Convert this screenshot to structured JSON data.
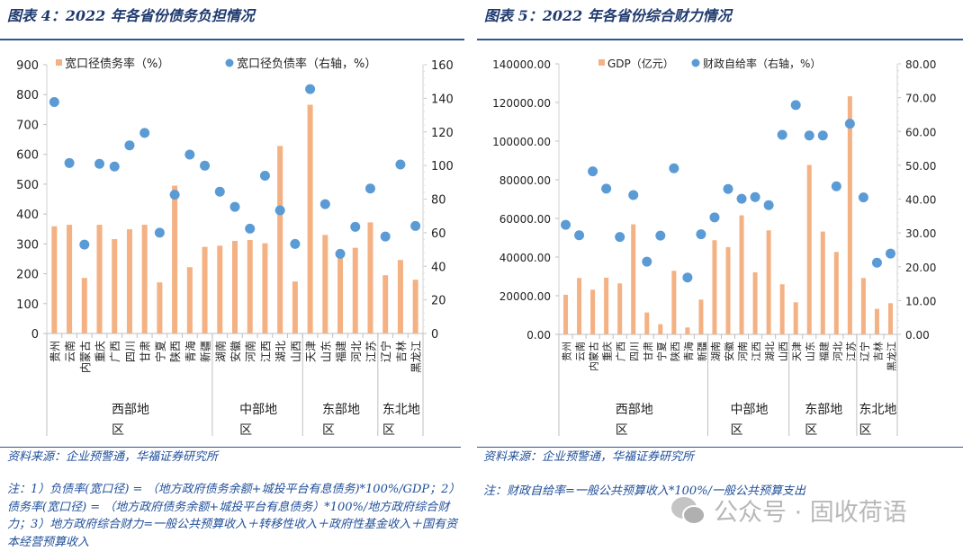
{
  "left": {
    "title": "图表 4：2022 年各省份债务负担情况",
    "source": "资料来源：企业预警通，华福证券研究所",
    "note": "注：1）负债率(宽口径) = （地方政府债务余额+城投平台有息债务)*100%/GDP；2）债务率(宽口径) = （地方政府债务余额+城投平台有息债务）*100%/地方政府综合财力；3）地方政府综合财力=一般公共预算收入＋转移性收入＋政府性基金收入＋国有资本经营预算收入"
  },
  "right": {
    "title": "图表 5：2022 年各省份综合财力情况",
    "source": "资料来源：企业预警通，华福证券研究所",
    "note": "注：财政自给率=一般公共预算收入*100%/一般公共预算支出"
  },
  "watermark": "公众号 · 固收荷语",
  "chart_data": [
    {
      "type": "bar+scatter",
      "categories": [
        "贵州",
        "云南",
        "内蒙古",
        "重庆",
        "广西",
        "四川",
        "甘肃",
        "宁夏",
        "陕西",
        "青海",
        "新疆",
        "湖南",
        "安徽",
        "河南",
        "江西",
        "湖北",
        "山西",
        "天津",
        "山东",
        "福建",
        "河北",
        "江苏",
        "辽宁",
        "吉林",
        "黑龙江"
      ],
      "regions": [
        {
          "name": "西部地区",
          "from": 0,
          "to": 10
        },
        {
          "name": "中部地区",
          "from": 11,
          "to": 16
        },
        {
          "name": "东部地区",
          "from": 17,
          "to": 21
        },
        {
          "name": "东北地区",
          "from": 22,
          "to": 24
        }
      ],
      "series": [
        {
          "name": "宽口径债务率（%）",
          "type": "bar",
          "axis": "left",
          "color": "#f4b183",
          "values": [
            359,
            364,
            186,
            364,
            316,
            349,
            364,
            171,
            495,
            222,
            290,
            294,
            310,
            313,
            302,
            628,
            174,
            766,
            330,
            260,
            287,
            372,
            195,
            246,
            180
          ]
        },
        {
          "name": "宽口径负债率（右轴，%）",
          "type": "scatter",
          "axis": "right",
          "color": "#5b9bd5",
          "values": [
            137.8,
            101.5,
            52.9,
            101,
            99.4,
            112,
            119.4,
            60,
            82.6,
            106.5,
            99.9,
            84.4,
            75.4,
            62.4,
            93.9,
            73.3,
            53.3,
            145.5,
            77,
            47.4,
            63.5,
            86.3,
            57.7,
            100.6,
            64
          ]
        }
      ],
      "yleft": {
        "min": 0,
        "max": 900,
        "step": 100,
        "ticks": [
          "0",
          "100",
          "200",
          "300",
          "400",
          "500",
          "600",
          "700",
          "800",
          "900"
        ]
      },
      "yright": {
        "min": 0,
        "max": 160,
        "step": 20,
        "ticks": [
          "0",
          "20",
          "40",
          "60",
          "80",
          "100",
          "120",
          "140",
          "160"
        ]
      },
      "legend": "top",
      "grid": false
    },
    {
      "type": "bar+scatter",
      "categories": [
        "贵州",
        "云南",
        "内蒙古",
        "重庆",
        "广西",
        "四川",
        "甘肃",
        "宁夏",
        "陕西",
        "青海",
        "新疆",
        "湖南",
        "安徽",
        "河南",
        "江西",
        "湖北",
        "山西",
        "天津",
        "山东",
        "福建",
        "河北",
        "江苏",
        "辽宁",
        "吉林",
        "黑龙江"
      ],
      "regions": [
        {
          "name": "西部地区",
          "from": 0,
          "to": 10
        },
        {
          "name": "中部地区",
          "from": 11,
          "to": 16
        },
        {
          "name": "东部地区",
          "from": 17,
          "to": 21
        },
        {
          "name": "东北地区",
          "from": 22,
          "to": 24
        }
      ],
      "series": [
        {
          "name": "GDP（亿元）",
          "type": "bar",
          "axis": "left",
          "color": "#f4b183",
          "values": [
            20480,
            29170,
            23120,
            29330,
            26380,
            56950,
            11330,
            5280,
            32900,
            3570,
            18000,
            48720,
            45150,
            61600,
            32120,
            53840,
            25910,
            16600,
            87670,
            53220,
            42670,
            123200,
            29170,
            13190,
            16140
          ]
        },
        {
          "name": "财政自给率（右轴，%）",
          "type": "scatter",
          "axis": "right",
          "color": "#5b9bd5",
          "values": [
            32.4,
            29.3,
            48.2,
            43.1,
            28.8,
            41.2,
            21.5,
            29.2,
            49.1,
            16.8,
            29.6,
            34.6,
            43.0,
            40.1,
            40.6,
            38.2,
            59.0,
            67.8,
            58.8,
            58.8,
            43.8,
            62.3,
            40.5,
            21.2,
            23.9
          ]
        }
      ],
      "yleft": {
        "min": 0,
        "max": 140000,
        "step": 20000,
        "ticks": [
          "0.00",
          "20000.00",
          "40000.00",
          "60000.00",
          "80000.00",
          "100000.00",
          "120000.00",
          "140000.00"
        ]
      },
      "yright": {
        "min": 0,
        "max": 80,
        "step": 10,
        "ticks": [
          "0.00",
          "10.00",
          "20.00",
          "30.00",
          "40.00",
          "50.00",
          "60.00",
          "70.00",
          "80.00"
        ]
      },
      "legend": "top",
      "grid": false
    }
  ]
}
